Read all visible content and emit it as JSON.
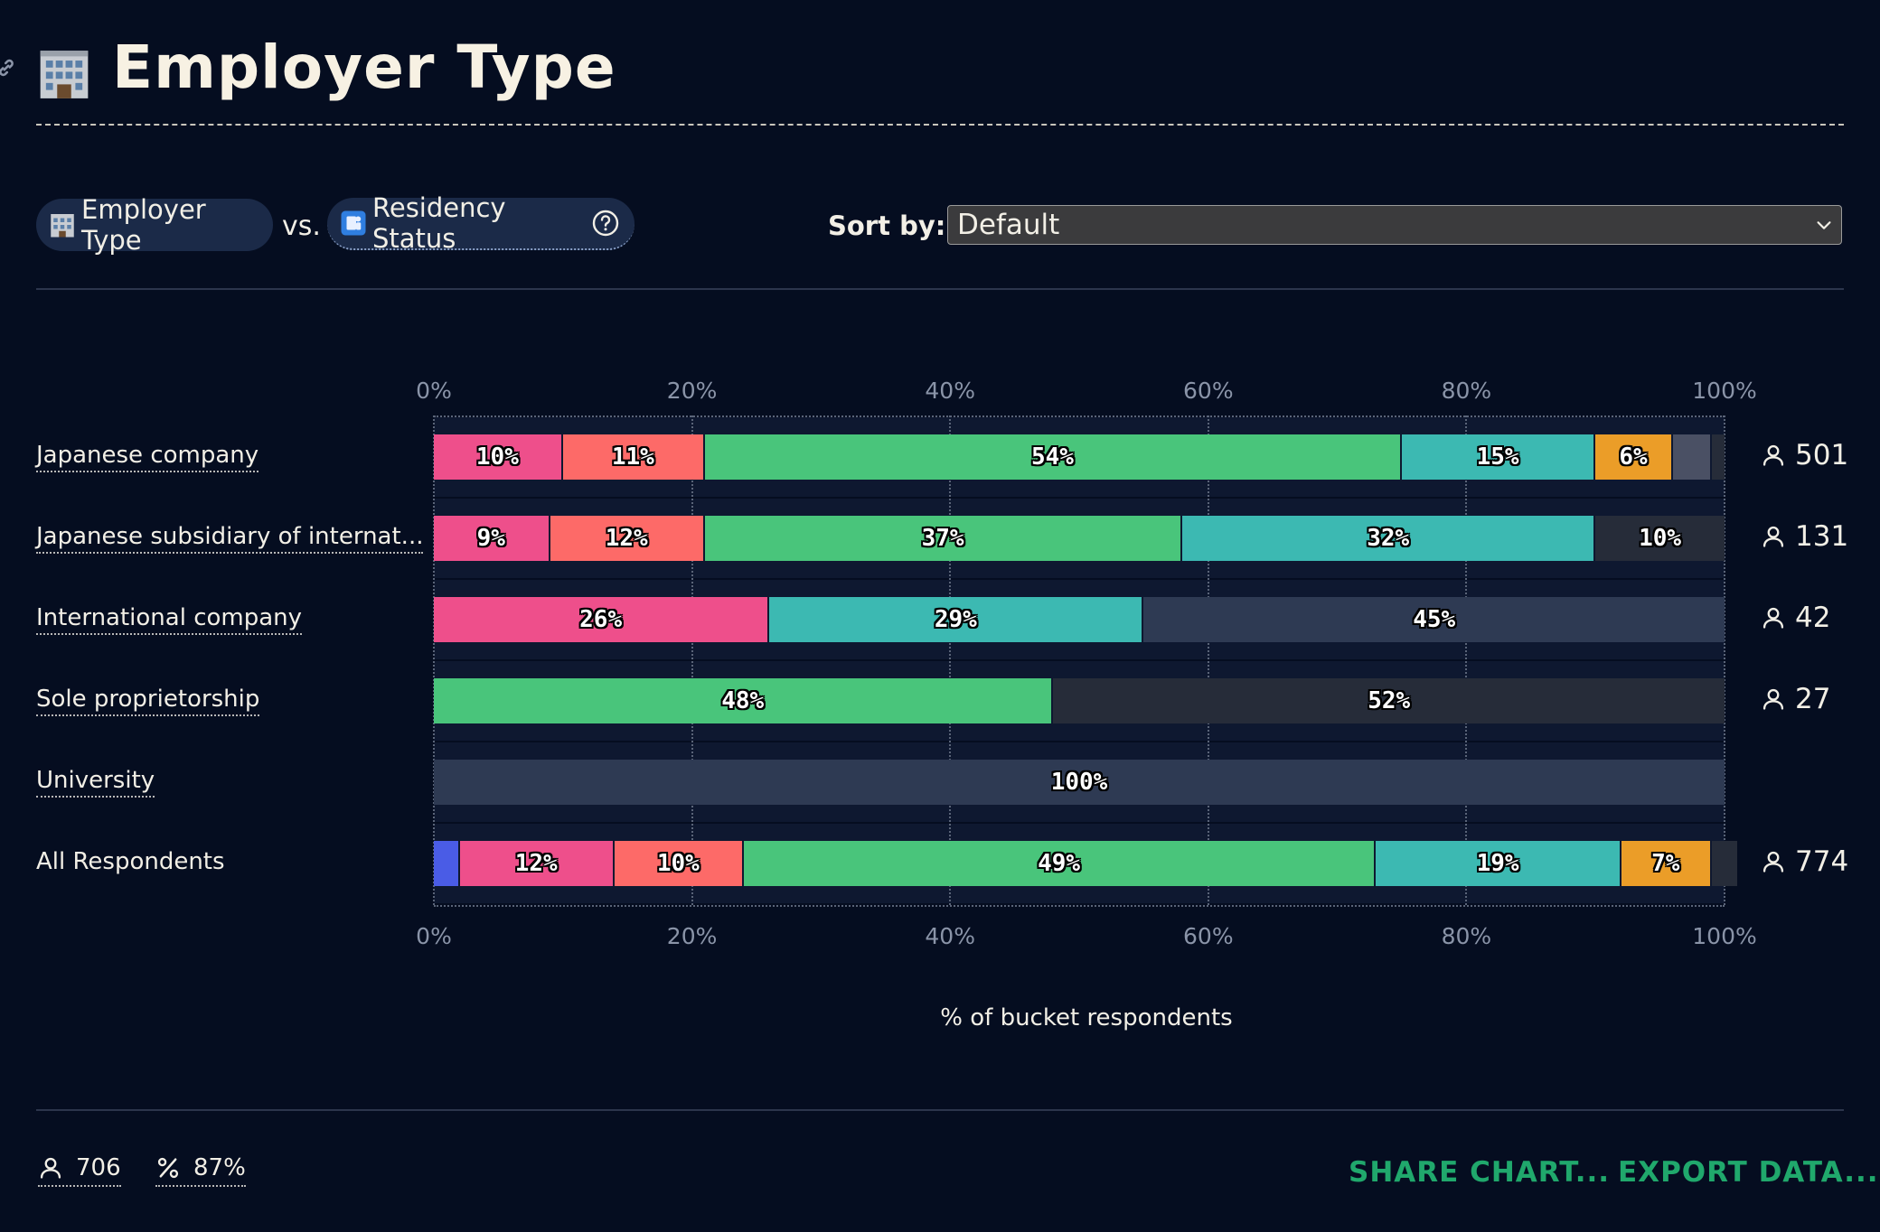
{
  "header": {
    "title": "Employer Type",
    "title_icon": "office-building-icon",
    "link_icon": "link-icon"
  },
  "controls": {
    "pill_1": {
      "label": "Employer Type",
      "icon": "office-building-icon"
    },
    "vs_label": "vs.",
    "pill_2": {
      "label": "Residency Status",
      "icon": "passport-control-icon",
      "help_icon": "question-circle-icon"
    },
    "sort_label": "Sort by:",
    "sort_value": "Default"
  },
  "colors": {
    "pink": "#ee4f8b",
    "salmon": "#fd6a68",
    "green": "#49c57b",
    "teal": "#3cb9b2",
    "orange": "#eb9d28",
    "blue": "#4a5ce6",
    "gray": "#4a5064",
    "dark": "#262c39",
    "slate": "#2e3a53"
  },
  "chart_data": {
    "type": "bar",
    "orientation": "horizontal",
    "stacked": true,
    "xlabel": "% of bucket respondents",
    "xlim": [
      0,
      100
    ],
    "xticks": [
      "0%",
      "20%",
      "40%",
      "60%",
      "80%",
      "100%"
    ],
    "grid": true,
    "categories": [
      "Japanese company",
      "Japanese subsidiary of internat...",
      "International company",
      "Sole proprietorship",
      "University",
      "All Respondents"
    ],
    "rows": [
      {
        "label": "Japanese company",
        "count": "501",
        "segments": [
          {
            "value": 10,
            "label": "10%",
            "color": "pink"
          },
          {
            "value": 11,
            "label": "11%",
            "color": "salmon"
          },
          {
            "value": 54,
            "label": "54%",
            "color": "green"
          },
          {
            "value": 15,
            "label": "15%",
            "color": "teal"
          },
          {
            "value": 6,
            "label": "6%",
            "color": "orange"
          },
          {
            "value": 3,
            "label": "",
            "color": "gray"
          },
          {
            "value": 1,
            "label": "",
            "color": "dark"
          }
        ]
      },
      {
        "label": "Japanese subsidiary of internat...",
        "count": "131",
        "segments": [
          {
            "value": 9,
            "label": "9%",
            "color": "pink"
          },
          {
            "value": 12,
            "label": "12%",
            "color": "salmon"
          },
          {
            "value": 37,
            "label": "37%",
            "color": "green"
          },
          {
            "value": 32,
            "label": "32%",
            "color": "teal"
          },
          {
            "value": 10,
            "label": "10%",
            "color": "dark"
          }
        ]
      },
      {
        "label": "International company",
        "count": "42",
        "segments": [
          {
            "value": 26,
            "label": "26%",
            "color": "pink"
          },
          {
            "value": 29,
            "label": "29%",
            "color": "teal"
          },
          {
            "value": 45,
            "label": "45%",
            "color": "slate"
          }
        ]
      },
      {
        "label": "Sole proprietorship",
        "count": "27",
        "segments": [
          {
            "value": 48,
            "label": "48%",
            "color": "green"
          },
          {
            "value": 52,
            "label": "52%",
            "color": "dark"
          }
        ]
      },
      {
        "label": "University",
        "count": "",
        "segments": [
          {
            "value": 100,
            "label": "100%",
            "color": "slate"
          }
        ]
      },
      {
        "label": "All Respondents",
        "count": "774",
        "segments": [
          {
            "value": 2,
            "label": "",
            "color": "blue"
          },
          {
            "value": 12,
            "label": "12%",
            "color": "pink"
          },
          {
            "value": 10,
            "label": "10%",
            "color": "salmon"
          },
          {
            "value": 49,
            "label": "49%",
            "color": "green"
          },
          {
            "value": 19,
            "label": "19%",
            "color": "teal"
          },
          {
            "value": 7,
            "label": "7%",
            "color": "orange"
          },
          {
            "value": 2,
            "label": "",
            "color": "dark"
          }
        ]
      }
    ]
  },
  "footer": {
    "respondents": "706",
    "percent": "87%",
    "share_label": "SHARE CHART...",
    "export_label": "EXPORT DATA..."
  }
}
